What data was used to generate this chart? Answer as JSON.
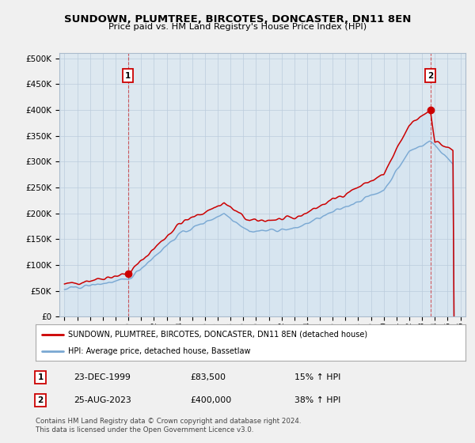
{
  "title": "SUNDOWN, PLUMTREE, BIRCOTES, DONCASTER, DN11 8EN",
  "subtitle": "Price paid vs. HM Land Registry's House Price Index (HPI)",
  "legend_line1": "SUNDOWN, PLUMTREE, BIRCOTES, DONCASTER, DN11 8EN (detached house)",
  "legend_line2": "HPI: Average price, detached house, Bassetlaw",
  "annotation1_num": "1",
  "annotation1_date": "23-DEC-1999",
  "annotation1_price": "£83,500",
  "annotation1_hpi": "15% ↑ HPI",
  "annotation2_num": "2",
  "annotation2_date": "25-AUG-2023",
  "annotation2_price": "£400,000",
  "annotation2_hpi": "38% ↑ HPI",
  "footnote": "Contains HM Land Registry data © Crown copyright and database right 2024.\nThis data is licensed under the Open Government Licence v3.0.",
  "red_color": "#cc0000",
  "blue_color": "#7aa8d2",
  "fill_blue": "#c8dff0",
  "grid_color": "#bbccdd",
  "bg_color": "#f0f0f0",
  "plot_bg": "#dde8f0",
  "yticks": [
    0,
    50000,
    100000,
    150000,
    200000,
    250000,
    300000,
    350000,
    400000,
    450000,
    500000
  ],
  "xlim_start": 1994.6,
  "xlim_end": 2026.4,
  "ylim_min": 0,
  "ylim_max": 510000,
  "sale1_x": 1999.97,
  "sale1_y": 83500,
  "sale2_x": 2023.65,
  "sale2_y": 400000
}
